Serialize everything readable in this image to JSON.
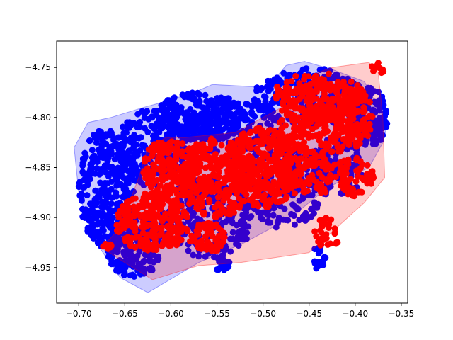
{
  "chart_data": {
    "type": "scatter",
    "title": "",
    "xlabel": "",
    "ylabel": "",
    "xlim": [
      -0.724,
      -0.343
    ],
    "ylim": [
      -4.9855,
      -4.7237
    ],
    "x_ticks": [
      -0.7,
      -0.65,
      -0.6,
      -0.55,
      -0.5,
      -0.45,
      -0.4,
      -0.35
    ],
    "x_tick_labels": [
      "−0.70",
      "−0.65",
      "−0.60",
      "−0.55",
      "−0.50",
      "−0.45",
      "−0.40",
      "−0.35"
    ],
    "y_ticks": [
      -4.75,
      -4.8,
      -4.85,
      -4.9,
      -4.95
    ],
    "y_tick_labels": [
      "−4.75",
      "−4.80",
      "−4.85",
      "−4.90",
      "−4.95"
    ],
    "grid": false,
    "legend": "none",
    "series": [
      {
        "color": "#0000ff",
        "hull_alpha": 0.2,
        "hull": [
          [
            -0.705,
            -4.83
          ],
          [
            -0.69,
            -4.805
          ],
          [
            -0.665,
            -4.8
          ],
          [
            -0.63,
            -4.79
          ],
          [
            -0.61,
            -4.785
          ],
          [
            -0.575,
            -4.775
          ],
          [
            -0.555,
            -4.767
          ],
          [
            -0.495,
            -4.77
          ],
          [
            -0.475,
            -4.748
          ],
          [
            -0.455,
            -4.744
          ],
          [
            -0.425,
            -4.752
          ],
          [
            -0.39,
            -4.764
          ],
          [
            -0.372,
            -4.795
          ],
          [
            -0.366,
            -4.81
          ],
          [
            -0.37,
            -4.825
          ],
          [
            -0.385,
            -4.85
          ],
          [
            -0.43,
            -4.87
          ],
          [
            -0.47,
            -4.9
          ],
          [
            -0.52,
            -4.925
          ],
          [
            -0.57,
            -4.945
          ],
          [
            -0.625,
            -4.975
          ],
          [
            -0.655,
            -4.96
          ],
          [
            -0.685,
            -4.92
          ],
          [
            -0.7,
            -4.875
          ]
        ],
        "blobs": [
          {
            "cx": -0.67,
            "cy": -4.87,
            "rx": 0.03,
            "ry": 0.06,
            "n": 320
          },
          {
            "cx": -0.62,
            "cy": -4.83,
            "rx": 0.04,
            "ry": 0.04,
            "n": 220
          },
          {
            "cx": -0.57,
            "cy": -4.8,
            "rx": 0.05,
            "ry": 0.025,
            "n": 220
          },
          {
            "cx": -0.53,
            "cy": -4.81,
            "rx": 0.05,
            "ry": 0.03,
            "n": 160
          },
          {
            "cx": -0.45,
            "cy": -4.78,
            "rx": 0.06,
            "ry": 0.03,
            "n": 220
          },
          {
            "cx": -0.385,
            "cy": -4.8,
            "rx": 0.02,
            "ry": 0.03,
            "n": 160
          },
          {
            "cx": -0.42,
            "cy": -4.85,
            "rx": 0.03,
            "ry": 0.03,
            "n": 140
          },
          {
            "cx": -0.64,
            "cy": -4.93,
            "rx": 0.03,
            "ry": 0.03,
            "n": 200
          },
          {
            "cx": -0.56,
            "cy": -4.9,
            "rx": 0.05,
            "ry": 0.04,
            "n": 220
          },
          {
            "cx": -0.48,
            "cy": -4.87,
            "rx": 0.05,
            "ry": 0.04,
            "n": 220
          },
          {
            "cx": -0.44,
            "cy": -4.94,
            "rx": 0.008,
            "ry": 0.012,
            "n": 20
          },
          {
            "cx": -0.545,
            "cy": -4.945,
            "rx": 0.01,
            "ry": 0.01,
            "n": 20
          }
        ]
      },
      {
        "color": "#ff0000",
        "hull_alpha": 0.2,
        "hull": [
          [
            -0.675,
            -4.93
          ],
          [
            -0.655,
            -4.91
          ],
          [
            -0.635,
            -4.86
          ],
          [
            -0.625,
            -4.83
          ],
          [
            -0.605,
            -4.82
          ],
          [
            -0.585,
            -4.82
          ],
          [
            -0.53,
            -4.815
          ],
          [
            -0.47,
            -4.785
          ],
          [
            -0.44,
            -4.755
          ],
          [
            -0.425,
            -4.75
          ],
          [
            -0.385,
            -4.745
          ],
          [
            -0.375,
            -4.755
          ],
          [
            -0.37,
            -4.8
          ],
          [
            -0.368,
            -4.86
          ],
          [
            -0.39,
            -4.885
          ],
          [
            -0.45,
            -4.935
          ],
          [
            -0.525,
            -4.945
          ],
          [
            -0.57,
            -4.948
          ],
          [
            -0.62,
            -4.962
          ],
          [
            -0.65,
            -4.945
          ]
        ],
        "blobs": [
          {
            "cx": -0.62,
            "cy": -4.905,
            "rx": 0.04,
            "ry": 0.03,
            "n": 260
          },
          {
            "cx": -0.6,
            "cy": -4.85,
            "rx": 0.03,
            "ry": 0.03,
            "n": 180
          },
          {
            "cx": -0.55,
            "cy": -4.86,
            "rx": 0.04,
            "ry": 0.04,
            "n": 280
          },
          {
            "cx": -0.5,
            "cy": -4.85,
            "rx": 0.04,
            "ry": 0.04,
            "n": 260
          },
          {
            "cx": -0.45,
            "cy": -4.83,
            "rx": 0.04,
            "ry": 0.05,
            "n": 280
          },
          {
            "cx": -0.44,
            "cy": -4.78,
            "rx": 0.05,
            "ry": 0.025,
            "n": 200
          },
          {
            "cx": -0.4,
            "cy": -4.8,
            "rx": 0.02,
            "ry": 0.03,
            "n": 120
          },
          {
            "cx": -0.4,
            "cy": -4.86,
            "rx": 0.02,
            "ry": 0.02,
            "n": 60
          },
          {
            "cx": -0.56,
            "cy": -4.92,
            "rx": 0.02,
            "ry": 0.015,
            "n": 60
          },
          {
            "cx": -0.43,
            "cy": -4.915,
            "rx": 0.015,
            "ry": 0.015,
            "n": 30
          },
          {
            "cx": -0.375,
            "cy": -4.75,
            "rx": 0.008,
            "ry": 0.006,
            "n": 12
          },
          {
            "cx": -0.67,
            "cy": -4.928,
            "rx": 0.006,
            "ry": 0.004,
            "n": 8
          }
        ]
      }
    ]
  }
}
